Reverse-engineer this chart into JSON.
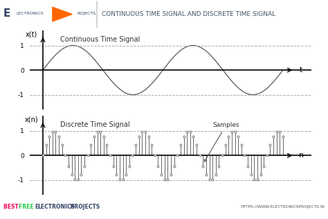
{
  "title": "CONTINUOUS TIME SIGNAL AND DISCRETE TIME SIGNAL",
  "bg_color": "#ffffff",
  "ct_label": "Continuous Time Signal",
  "dt_label": "Discrete Time Signal",
  "samples_label": "Samples",
  "ct_xlabel": "t",
  "dt_xlabel": "n",
  "ct_ylabel": "x(t)",
  "dt_ylabel": "x(n)",
  "cts_color": "#666666",
  "dts_color": "#666666",
  "axis_color": "#000000",
  "dashed_color": "#aaaaaa",
  "header_sep_color": "#cccccc",
  "title_color": "#445566",
  "logo_color": "#334466",
  "arrow_color": "#ff6600",
  "footer_right": "HTTPS://WWW.ELECTRONICSPROJECTS.IN",
  "footer_color": "#555555"
}
